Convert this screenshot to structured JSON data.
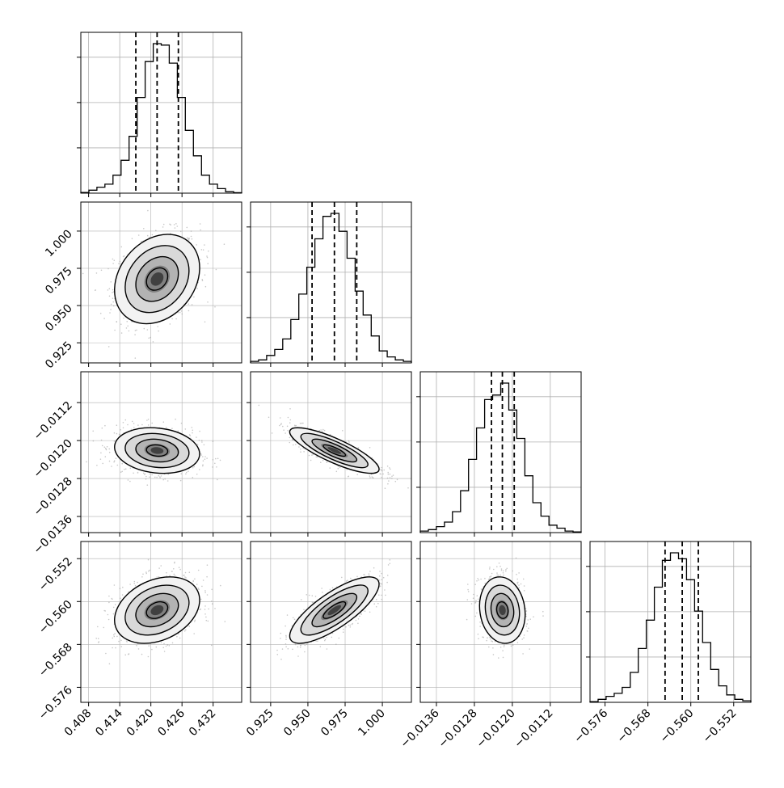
{
  "chart_data": {
    "type": "corner",
    "parameters": [
      {
        "range": [
          0.4065,
          0.4375
        ],
        "ticks": [
          0.408,
          0.414,
          0.42,
          0.426,
          0.432
        ],
        "tick_labels": [
          "0.408",
          "0.414",
          "0.420",
          "0.426",
          "0.432"
        ],
        "quantiles": [
          0.4171,
          0.4212,
          0.4253
        ],
        "hist": [
          0.005,
          0.02,
          0.04,
          0.06,
          0.12,
          0.22,
          0.38,
          0.64,
          0.88,
          1.0,
          0.99,
          0.87,
          0.64,
          0.42,
          0.25,
          0.12,
          0.06,
          0.03,
          0.01,
          0.003
        ]
      },
      {
        "range": [
          0.9115,
          1.0195
        ],
        "ticks": [
          0.925,
          0.95,
          0.975,
          1.0
        ],
        "tick_labels": [
          "0.925",
          "0.950",
          "0.975",
          "1.000"
        ],
        "quantiles": [
          0.9528,
          0.9678,
          0.9828
        ],
        "hist": [
          0.01,
          0.02,
          0.05,
          0.09,
          0.16,
          0.29,
          0.46,
          0.64,
          0.83,
          0.98,
          1.0,
          0.88,
          0.7,
          0.48,
          0.32,
          0.18,
          0.08,
          0.04,
          0.02,
          0.01
        ]
      },
      {
        "range": [
          -0.01394,
          -0.01055
        ],
        "ticks": [
          -0.0136,
          -0.0128,
          -0.012,
          -0.0112
        ],
        "tick_labels": [
          "−0.0136",
          "−0.0128",
          "−0.0120",
          "−0.0112"
        ],
        "quantiles": [
          -0.01244,
          -0.01221,
          -0.01196
        ],
        "hist": [
          0.01,
          0.02,
          0.04,
          0.07,
          0.14,
          0.28,
          0.49,
          0.7,
          0.89,
          0.92,
          1.0,
          0.82,
          0.63,
          0.38,
          0.2,
          0.11,
          0.05,
          0.03,
          0.01,
          0.005
        ]
      },
      {
        "range": [
          -0.5788,
          -0.5488
        ],
        "ticks": [
          -0.576,
          -0.568,
          -0.56,
          -0.552
        ],
        "tick_labels": [
          "−0.576",
          "−0.568",
          "−0.560",
          "−0.552"
        ],
        "quantiles": [
          -0.5648,
          -0.5616,
          -0.5586
        ],
        "hist": [
          0.005,
          0.02,
          0.04,
          0.06,
          0.1,
          0.2,
          0.36,
          0.55,
          0.77,
          0.95,
          1.0,
          0.96,
          0.82,
          0.61,
          0.4,
          0.22,
          0.11,
          0.05,
          0.02,
          0.01
        ]
      }
    ],
    "pairs": [
      {
        "row": 1,
        "col": 0,
        "correlation": 0.25
      },
      {
        "row": 2,
        "col": 0,
        "correlation": -0.15
      },
      {
        "row": 2,
        "col": 1,
        "correlation": -0.82
      },
      {
        "row": 3,
        "col": 0,
        "correlation": 0.3
      },
      {
        "row": 3,
        "col": 1,
        "correlation": 0.78
      },
      {
        "row": 3,
        "col": 2,
        "correlation": -0.12
      }
    ],
    "contour_levels_sigma": [
      0.5,
      1.0,
      1.5,
      2.0
    ],
    "grid": true,
    "colors": {
      "line": "#000000",
      "grid": "#b0b0b0",
      "points": "#9a9a9a"
    }
  }
}
